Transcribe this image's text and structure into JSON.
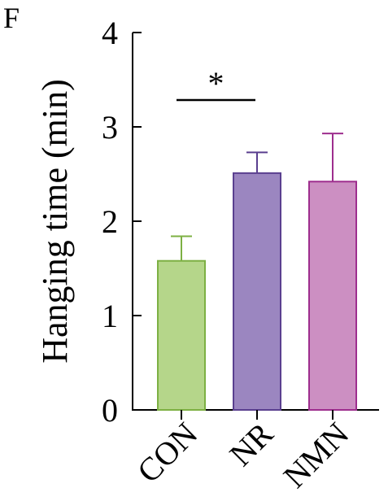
{
  "panel_label": "F",
  "chart_data": {
    "type": "bar",
    "title": "",
    "xlabel": "",
    "ylabel": "Hanging time (min)",
    "categories": [
      "CON",
      "NR",
      "NMN"
    ],
    "values": [
      1.58,
      2.51,
      2.42
    ],
    "errors": [
      0.26,
      0.22,
      0.51
    ],
    "ylim": [
      0,
      4
    ],
    "yticks": [
      0,
      1,
      2,
      3,
      4
    ],
    "grid": false,
    "legend": "none",
    "colors": {
      "fill": [
        "#b5d68a",
        "#9b86c0",
        "#cc8fc2"
      ],
      "stroke": [
        "#7db043",
        "#5a3f8f",
        "#9e2e8e"
      ]
    },
    "annotations": [
      {
        "text": "*",
        "from": "CON",
        "to": "NR"
      }
    ]
  }
}
